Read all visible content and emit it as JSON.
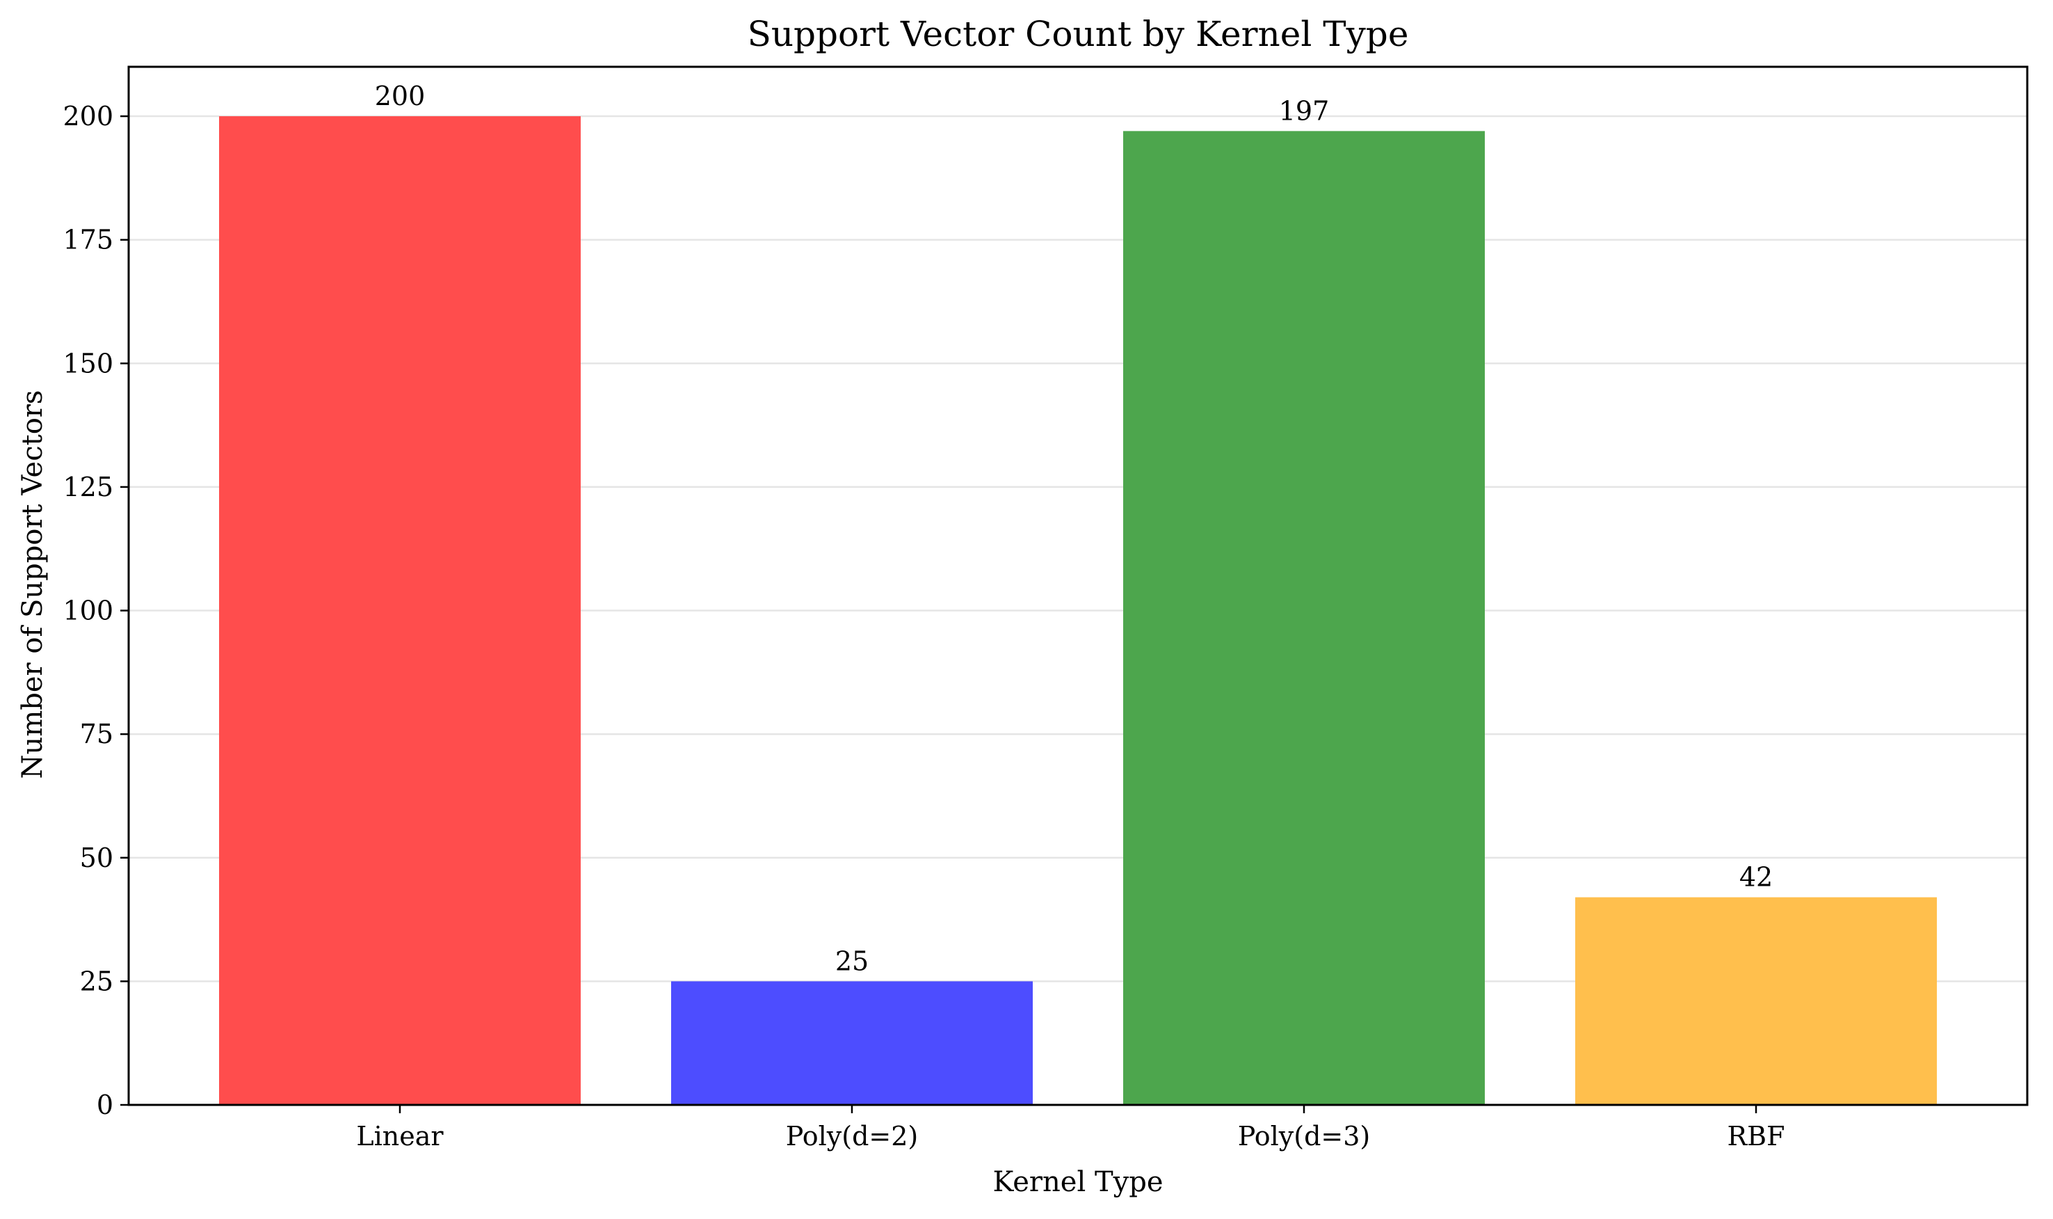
{
  "chart_data": {
    "type": "bar",
    "title": "Support Vector Count by Kernel Type",
    "xlabel": "Kernel Type",
    "ylabel": "Number of Support Vectors",
    "categories": [
      "Linear",
      "Poly(d=2)",
      "Poly(d=3)",
      "RBF"
    ],
    "values": [
      200,
      25,
      197,
      42
    ],
    "data_labels": [
      "200",
      "25",
      "197",
      "42"
    ],
    "colors": [
      "#ff4d4d",
      "#4d4dff",
      "#4da64d",
      "#ffbf4d"
    ],
    "ylim": [
      0,
      210
    ],
    "yticks": [
      0,
      25,
      50,
      75,
      100,
      125,
      150,
      175,
      200
    ],
    "ytick_labels": [
      "0",
      "25",
      "50",
      "75",
      "100",
      "125",
      "150",
      "175",
      "200"
    ],
    "grid": "horizontal",
    "legend": "none"
  }
}
